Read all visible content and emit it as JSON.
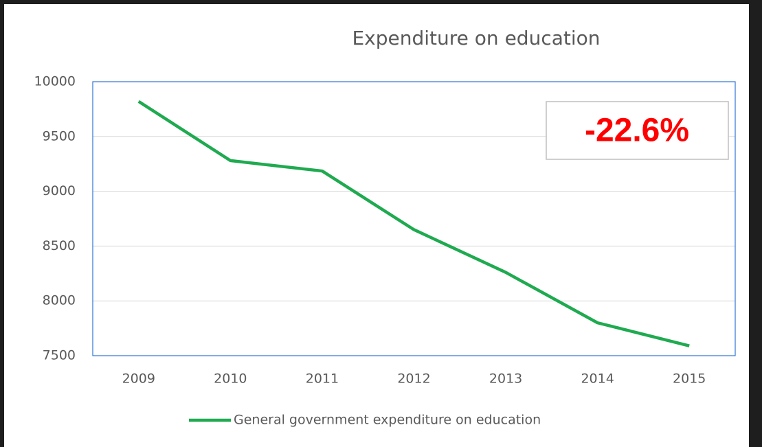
{
  "chart_data": {
    "type": "line",
    "title": "Expenditure on education",
    "categories": [
      "2009",
      "2010",
      "2011",
      "2012",
      "2013",
      "2014",
      "2015"
    ],
    "series": [
      {
        "name": "General government expenditure on education",
        "color": "#1faa50",
        "values": [
          9820,
          9280,
          9185,
          8650,
          8260,
          7800,
          7590
        ]
      }
    ],
    "ylim": [
      7500,
      10000
    ],
    "yticks": [
      7500,
      8000,
      8500,
      9000,
      9500,
      10000
    ],
    "grid": true,
    "annotation": "-22.6%",
    "legend": "bottom"
  }
}
